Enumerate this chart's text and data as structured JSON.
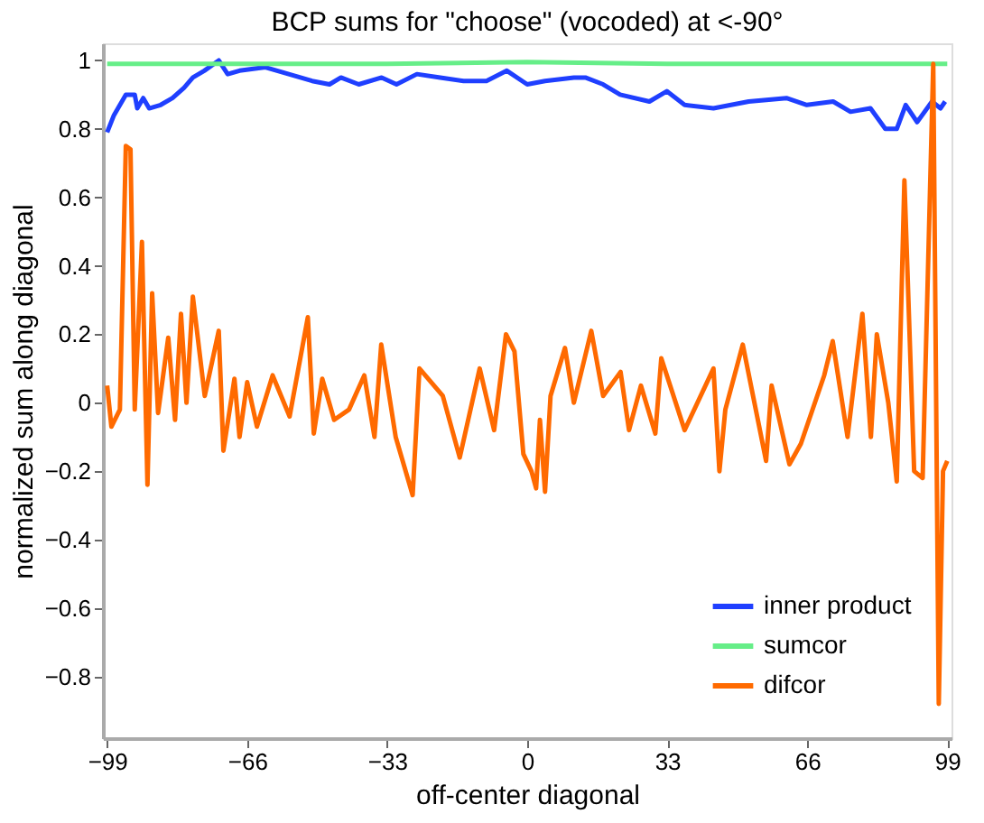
{
  "chart_data": {
    "type": "line",
    "title": "BCP sums for \"choose\" (vocoded) at <-90°",
    "xlabel": "off-center diagonal",
    "ylabel": "normalized sum along diagonal",
    "xlim": [
      -100,
      100
    ],
    "xticks": [
      -99,
      -66,
      -33,
      0,
      33,
      66,
      99
    ],
    "ylim": [
      -0.98,
      1.05
    ],
    "yticks": [
      -0.8,
      -0.6,
      -0.4,
      -0.2,
      0,
      0.2,
      0.4,
      0.6,
      0.8,
      1
    ],
    "grid": false,
    "legend": "bottom right",
    "line_style": "solid",
    "marker": "none",
    "series": [
      {
        "name": "inner product",
        "color": "#1f3fff",
        "x": [
          -99,
          -97.4,
          -94.6,
          -92.5,
          -91.9,
          -90.5,
          -89.1,
          -86.4,
          -83.6,
          -80.9,
          -78.8,
          -76.1,
          -72.7,
          -70.6,
          -67.8,
          -61.7,
          -56.2,
          -50.7,
          -46.6,
          -43.9,
          -39.7,
          -34.3,
          -30.8,
          -26,
          -20.5,
          -15,
          -9.6,
          -4.8,
          0,
          4.2,
          11,
          13.7,
          17.9,
          21.9,
          28.8,
          32.9,
          37.1,
          43.9,
          52.2,
          61.1,
          65.9,
          72.1,
          76.2,
          80.9,
          84.4,
          87.1,
          89.2,
          91.9,
          95.4,
          97.4,
          98.5
        ],
        "values": [
          0.79,
          0.84,
          0.9,
          0.9,
          0.86,
          0.89,
          0.86,
          0.87,
          0.89,
          0.92,
          0.95,
          0.97,
          1.0,
          0.96,
          0.97,
          0.98,
          0.96,
          0.94,
          0.93,
          0.95,
          0.93,
          0.95,
          0.93,
          0.96,
          0.95,
          0.94,
          0.94,
          0.97,
          0.93,
          0.94,
          0.95,
          0.95,
          0.93,
          0.9,
          0.88,
          0.91,
          0.87,
          0.86,
          0.88,
          0.89,
          0.87,
          0.88,
          0.85,
          0.86,
          0.8,
          0.8,
          0.87,
          0.82,
          0.88,
          0.86,
          0.88
        ]
      },
      {
        "name": "sumcor",
        "color": "#66ee88",
        "x": [
          -99,
          -66,
          -33,
          0,
          33,
          66,
          99
        ],
        "values": [
          0.99,
          0.99,
          0.99,
          0.995,
          0.99,
          0.99,
          0.99
        ]
      },
      {
        "name": "difcor",
        "color": "#ff6a00",
        "x": [
          -99,
          -98,
          -96,
          -94.6,
          -93.5,
          -92.5,
          -90.8,
          -89.5,
          -88.4,
          -87,
          -84.6,
          -83,
          -81.6,
          -80.3,
          -78.8,
          -76,
          -72.7,
          -71.6,
          -69,
          -67.8,
          -66,
          -63.7,
          -60,
          -56,
          -51.7,
          -50.3,
          -48.3,
          -45.5,
          -42,
          -38.4,
          -36,
          -34.4,
          -31,
          -27,
          -25.4,
          -19.9,
          -15.9,
          -11.2,
          -7.8,
          -5,
          -3,
          -0.9,
          1,
          2.1,
          3,
          4.2,
          5.5,
          8.9,
          11,
          15.1,
          17.9,
          22,
          24,
          26.8,
          30.2,
          31.6,
          37.1,
          43.9,
          45.3,
          46.7,
          50.8,
          56.3,
          57.6,
          61.8,
          64.5,
          70,
          72,
          75.5,
          79,
          81,
          82.4,
          85.1,
          87.1,
          88.9,
          91.2,
          93.2,
          95.7,
          97,
          98,
          99
        ],
        "values": [
          0.05,
          -0.07,
          -0.02,
          0.75,
          0.74,
          -0.02,
          0.47,
          -0.24,
          0.32,
          -0.03,
          0.19,
          -0.05,
          0.26,
          0.0,
          0.31,
          0.02,
          0.21,
          -0.14,
          0.07,
          -0.1,
          0.06,
          -0.07,
          0.08,
          -0.04,
          0.25,
          -0.09,
          0.07,
          -0.05,
          -0.02,
          0.08,
          -0.1,
          0.17,
          -0.1,
          -0.27,
          0.1,
          0.02,
          -0.16,
          0.1,
          -0.08,
          0.2,
          0.15,
          -0.15,
          -0.2,
          -0.25,
          -0.05,
          -0.26,
          0.02,
          0.16,
          0.0,
          0.21,
          0.02,
          0.09,
          -0.08,
          0.05,
          -0.09,
          0.13,
          -0.08,
          0.1,
          -0.2,
          -0.02,
          0.17,
          -0.17,
          0.05,
          -0.18,
          -0.12,
          0.08,
          0.18,
          -0.1,
          0.26,
          -0.1,
          0.2,
          0.0,
          -0.23,
          0.65,
          -0.2,
          -0.22,
          0.99,
          -0.88,
          -0.2,
          -0.17
        ]
      }
    ]
  }
}
